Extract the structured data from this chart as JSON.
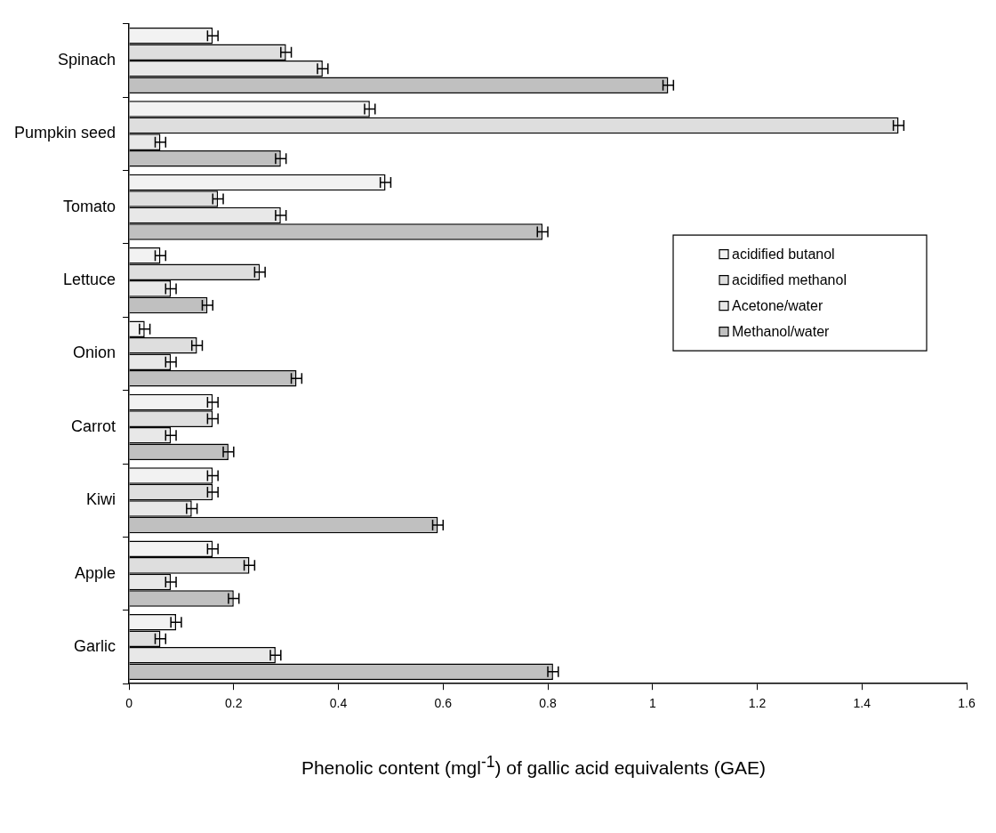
{
  "chart_data": {
    "type": "bar",
    "orientation": "horizontal",
    "xlabel": "Phenolic content (mgl$^{-1}$) of gallic acid equivalents (GAE)",
    "categories": [
      "Spinach",
      "Pumpkin seed",
      "Tomato",
      "Lettuce",
      "Onion",
      "Carrot",
      "Kiwi",
      "Apple",
      "Garlic"
    ],
    "series": [
      {
        "name": "acidified butanol",
        "color": "#f2f2f2",
        "values": [
          0.16,
          0.46,
          0.49,
          0.06,
          0.03,
          0.16,
          0.16,
          0.16,
          0.09
        ],
        "errors": [
          0.01,
          0.01,
          0.01,
          0.01,
          0.01,
          0.01,
          0.01,
          0.01,
          0.01
        ]
      },
      {
        "name": "acidified methanol",
        "color": "#dedede",
        "values": [
          0.3,
          1.47,
          0.17,
          0.25,
          0.13,
          0.16,
          0.16,
          0.23,
          0.06
        ],
        "errors": [
          0.01,
          0.01,
          0.01,
          0.01,
          0.01,
          0.01,
          0.01,
          0.01,
          0.01
        ]
      },
      {
        "name": "Acetone/water",
        "color": "#e8e8e8",
        "values": [
          0.37,
          0.06,
          0.29,
          0.08,
          0.08,
          0.08,
          0.12,
          0.08,
          0.28
        ],
        "errors": [
          0.01,
          0.01,
          0.01,
          0.01,
          0.01,
          0.01,
          0.01,
          0.01,
          0.01
        ]
      },
      {
        "name": "Methanol/water",
        "color": "#c0c0c0",
        "values": [
          1.03,
          0.29,
          0.79,
          0.15,
          0.32,
          0.19,
          0.59,
          0.2,
          0.81
        ],
        "errors": [
          0.01,
          0.01,
          0.01,
          0.01,
          0.01,
          0.01,
          0.01,
          0.01,
          0.01
        ]
      }
    ],
    "xlim": [
      0,
      1.6
    ],
    "xticks": [
      0,
      0.2,
      0.4,
      0.6,
      0.8,
      1,
      1.2,
      1.4,
      1.6
    ],
    "legend": "right"
  }
}
